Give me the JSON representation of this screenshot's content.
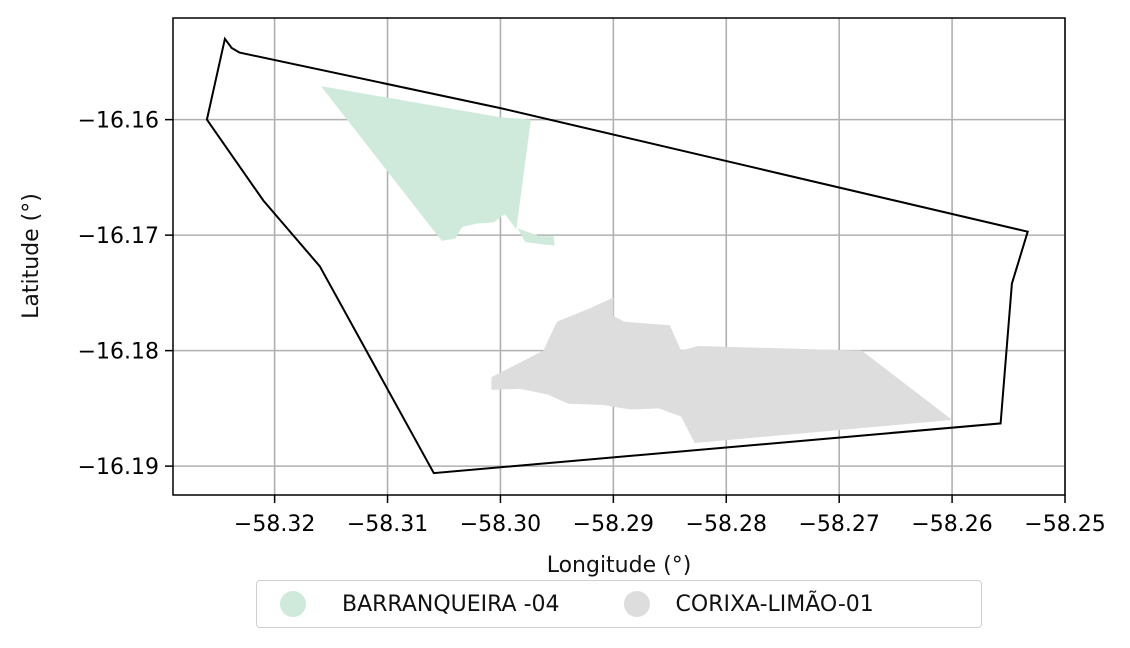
{
  "chart_data": {
    "type": "map",
    "xlabel": "Longitude (°)",
    "ylabel": "Latitude (°)",
    "xlim": [
      -58.329,
      -58.25
    ],
    "ylim": [
      -16.1925,
      -16.1512
    ],
    "grid": true,
    "x_ticks": [
      -58.32,
      -58.31,
      -58.3,
      -58.29,
      -58.28,
      -58.27,
      -58.26,
      -58.25
    ],
    "y_ticks": [
      -16.16,
      -16.17,
      -16.18,
      -16.19
    ],
    "x_tick_labels": [
      "−58.32",
      "−58.31",
      "−58.30",
      "−58.29",
      "−58.28",
      "−58.27",
      "−58.26",
      "−58.25"
    ],
    "y_tick_labels": [
      "−16.16",
      "−16.17",
      "−16.18",
      "−16.19"
    ],
    "legend_position": "bottom-center",
    "boundary": [
      [
        -58.326,
        -16.16
      ],
      [
        -58.3244,
        -16.153
      ],
      [
        -58.3238,
        -16.1538
      ],
      [
        -58.3231,
        -16.1542
      ],
      [
        -58.3,
        -16.159
      ],
      [
        -58.2533,
        -16.1697
      ],
      [
        -58.2547,
        -16.1742
      ],
      [
        -58.2557,
        -16.1863
      ],
      [
        -58.3059,
        -16.1906
      ],
      [
        -58.316,
        -16.1727
      ],
      [
        -58.321,
        -16.167
      ],
      [
        -58.326,
        -16.16
      ]
    ],
    "series": [
      {
        "name": "BARRANQUEIRA -04",
        "color": "#cfeadb",
        "polygons": [
          [
            [
              -58.3159,
              -16.1571
            ],
            [
              -58.3,
              -16.1598
            ],
            [
              -58.2973,
              -16.16
            ],
            [
              -58.2986,
              -16.1695
            ],
            [
              -58.2996,
              -16.1682
            ],
            [
              -58.3006,
              -16.1689
            ],
            [
              -58.3021,
              -16.169
            ],
            [
              -58.3034,
              -16.1693
            ],
            [
              -58.304,
              -16.1703
            ],
            [
              -58.3052,
              -16.1705
            ],
            [
              -58.3159,
              -16.1571
            ]
          ],
          [
            [
              -58.2985,
              -16.1694
            ],
            [
              -58.2965,
              -16.1701
            ],
            [
              -58.2953,
              -16.1701
            ],
            [
              -58.2952,
              -16.1709
            ],
            [
              -58.2962,
              -16.1708
            ],
            [
              -58.2978,
              -16.1706
            ],
            [
              -58.2985,
              -16.1694
            ]
          ]
        ]
      },
      {
        "name": "CORIXA-LIMÃO-01",
        "color": "#dddddd",
        "polygons": [
          [
            [
              -58.29,
              -16.1754
            ],
            [
              -58.292,
              -16.1763
            ],
            [
              -58.295,
              -16.1775
            ],
            [
              -58.2962,
              -16.18
            ],
            [
              -58.3008,
              -16.1823
            ],
            [
              -58.3008,
              -16.1834
            ],
            [
              -58.2983,
              -16.1833
            ],
            [
              -58.2958,
              -16.1838
            ],
            [
              -58.294,
              -16.1846
            ],
            [
              -58.291,
              -16.1847
            ],
            [
              -58.2885,
              -16.1851
            ],
            [
              -58.286,
              -16.185
            ],
            [
              -58.284,
              -16.1857
            ],
            [
              -58.2828,
              -16.188
            ],
            [
              -58.26,
              -16.186
            ],
            [
              -58.268,
              -16.18
            ],
            [
              -58.2825,
              -16.1796
            ],
            [
              -58.284,
              -16.18
            ],
            [
              -58.285,
              -16.1778
            ],
            [
              -58.289,
              -16.1775
            ],
            [
              -58.29,
              -16.177
            ],
            [
              -58.29,
              -16.1754
            ]
          ]
        ]
      }
    ]
  }
}
